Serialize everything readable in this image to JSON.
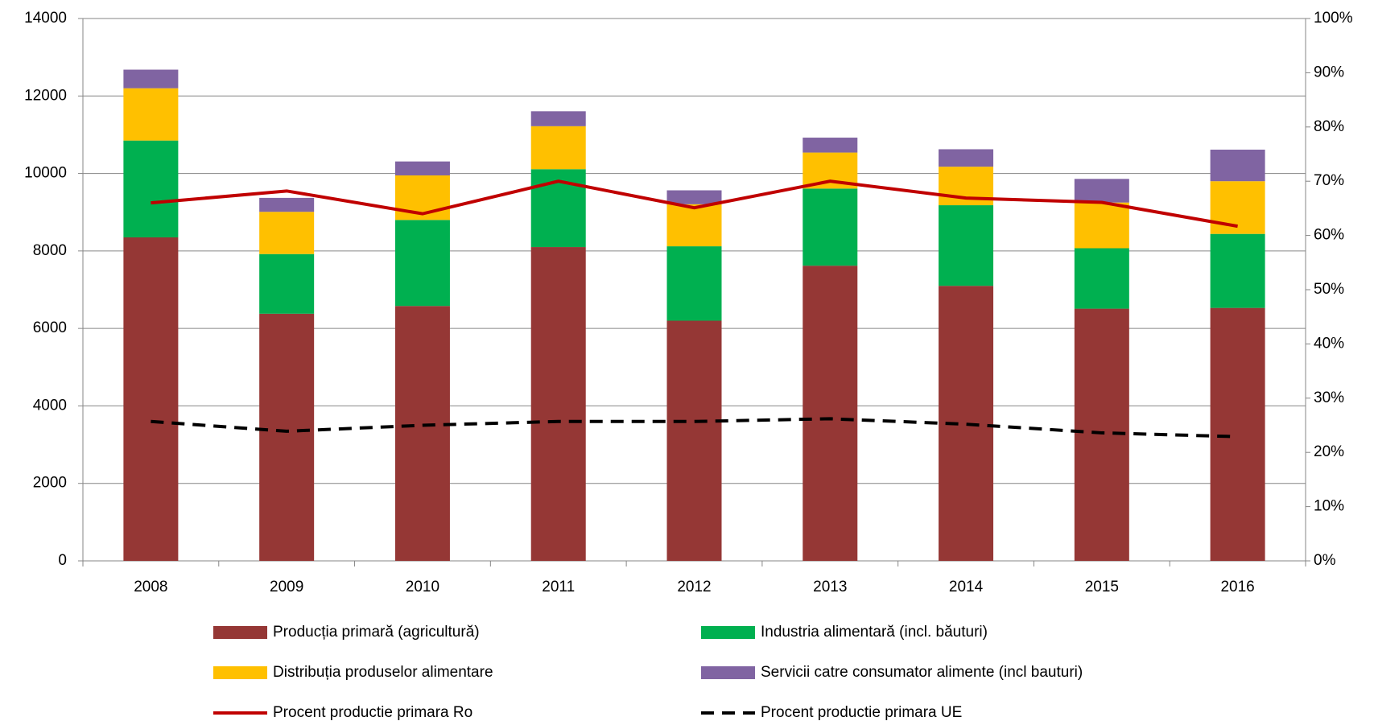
{
  "chart_data": {
    "type": "bar",
    "stacked": true,
    "categories": [
      "2008",
      "2009",
      "2010",
      "2011",
      "2012",
      "2013",
      "2014",
      "2015",
      "2016"
    ],
    "series": [
      {
        "name": "Producția primară (agricultură)",
        "type": "bar",
        "color": "#953735",
        "values": [
          8350,
          6380,
          6580,
          8100,
          6200,
          7620,
          7100,
          6510,
          6530
        ]
      },
      {
        "name": "Industria alimentară (incl. băuturi)",
        "type": "bar",
        "color": "#00b050",
        "values": [
          2500,
          1540,
          2220,
          2010,
          1920,
          1990,
          2080,
          1560,
          1910
        ]
      },
      {
        "name": "Distribuția produselor alimentare",
        "type": "bar",
        "color": "#ffc000",
        "values": [
          1350,
          1090,
          1150,
          1110,
          1085,
          930,
          995,
          1180,
          1360
        ]
      },
      {
        "name": "Servicii catre consumator alimente (incl bauturi)",
        "type": "bar",
        "color": "#8064a2",
        "values": [
          480,
          360,
          360,
          385,
          360,
          385,
          450,
          610,
          815
        ]
      },
      {
        "name": "Procent productie primara Ro",
        "type": "line",
        "axis": "y2",
        "color": "#c00000",
        "values": [
          66,
          68.2,
          64,
          70,
          65.1,
          70,
          66.9,
          66.1,
          61.7
        ]
      },
      {
        "name": "Procent productie primara UE",
        "type": "line",
        "axis": "y2",
        "color": "#000000",
        "dashed": true,
        "values": [
          25.7,
          23.9,
          25,
          25.7,
          25.7,
          26.2,
          25.2,
          23.6,
          22.9
        ]
      }
    ],
    "ylim": [
      0,
      14000
    ],
    "yticks": [
      0,
      2000,
      4000,
      6000,
      8000,
      10000,
      12000,
      14000
    ],
    "y2lim": [
      0,
      100
    ],
    "y2ticks": [
      {
        "value": 0,
        "label": "0%"
      },
      {
        "value": 10,
        "label": "10%"
      },
      {
        "value": 20,
        "label": "20%"
      },
      {
        "value": 30,
        "label": "30%"
      },
      {
        "value": 40,
        "label": "40%"
      },
      {
        "value": 50,
        "label": "50%"
      },
      {
        "value": 60,
        "label": "60%"
      },
      {
        "value": 70,
        "label": "70%"
      },
      {
        "value": 80,
        "label": "80%"
      },
      {
        "value": 90,
        "label": "90%"
      },
      {
        "value": 100,
        "label": "100%"
      }
    ],
    "grid": true
  }
}
